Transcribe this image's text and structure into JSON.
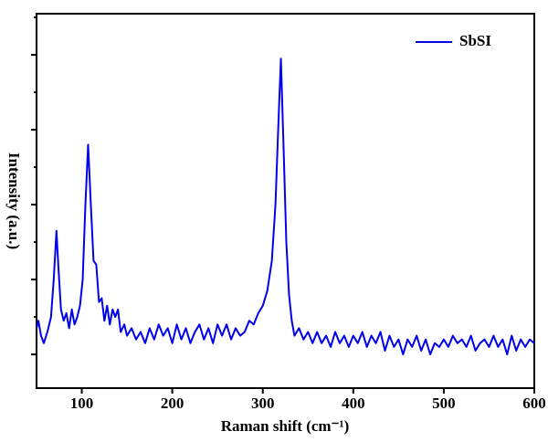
{
  "chart_data": {
    "type": "line",
    "xlabel": "Raman shift (cm⁻¹)",
    "ylabel": "Intensity (a.u.)",
    "x": [
      50,
      52,
      55,
      58,
      62,
      66,
      69,
      72,
      74,
      77,
      80,
      83,
      86,
      89,
      92,
      95,
      98,
      101,
      104,
      107,
      110,
      113,
      116,
      119,
      122,
      125,
      128,
      131,
      134,
      137,
      140,
      143,
      147,
      150,
      155,
      160,
      165,
      170,
      175,
      180,
      185,
      190,
      195,
      200,
      205,
      210,
      215,
      220,
      225,
      230,
      235,
      240,
      245,
      250,
      255,
      260,
      265,
      270,
      275,
      280,
      285,
      290,
      295,
      300,
      305,
      310,
      314,
      317,
      320,
      323,
      326,
      329,
      332,
      335,
      340,
      345,
      350,
      355,
      360,
      365,
      370,
      375,
      380,
      385,
      390,
      395,
      400,
      405,
      410,
      415,
      420,
      425,
      430,
      435,
      440,
      445,
      450,
      455,
      460,
      465,
      470,
      475,
      480,
      485,
      490,
      495,
      500,
      505,
      510,
      515,
      520,
      525,
      530,
      535,
      540,
      545,
      550,
      555,
      560,
      565,
      570,
      575,
      580,
      585,
      590,
      595,
      600
    ],
    "series": [
      {
        "name": "SbSI",
        "color": "#0000ee",
        "values": [
          7,
          9,
          5,
          3,
          6,
          10,
          20,
          33,
          24,
          12,
          9,
          11,
          7,
          12,
          8,
          10,
          13,
          20,
          40,
          56,
          40,
          25,
          24,
          14,
          15,
          9,
          13,
          8,
          12,
          10,
          12,
          6,
          8,
          5,
          7,
          4,
          6,
          3,
          7,
          4,
          8,
          5,
          7,
          3,
          8,
          4,
          7,
          3,
          6,
          8,
          4,
          7,
          3,
          8,
          5,
          8,
          4,
          7,
          5,
          6,
          9,
          8,
          11,
          13,
          17,
          25,
          40,
          60,
          79,
          55,
          30,
          16,
          9,
          5,
          7,
          4,
          6,
          3,
          6,
          3,
          5,
          2,
          6,
          3,
          5,
          2,
          5,
          3,
          6,
          2,
          5,
          3,
          6,
          1,
          5,
          2,
          4,
          0,
          4,
          2,
          5,
          1,
          4,
          0,
          3,
          2,
          4,
          2,
          5,
          3,
          4,
          2,
          5,
          1,
          3,
          4,
          2,
          5,
          2,
          4,
          0,
          5,
          1,
          4,
          2,
          4,
          3
        ]
      }
    ],
    "xlim": [
      50,
      600
    ],
    "xticks": [
      100,
      200,
      300,
      400,
      500,
      600
    ],
    "ylim": [
      -9,
      91
    ],
    "yticks": [
      0,
      10,
      20,
      30,
      40,
      50,
      60,
      70,
      80,
      90
    ],
    "show_ytick_labels": false,
    "legend": "upper right"
  }
}
